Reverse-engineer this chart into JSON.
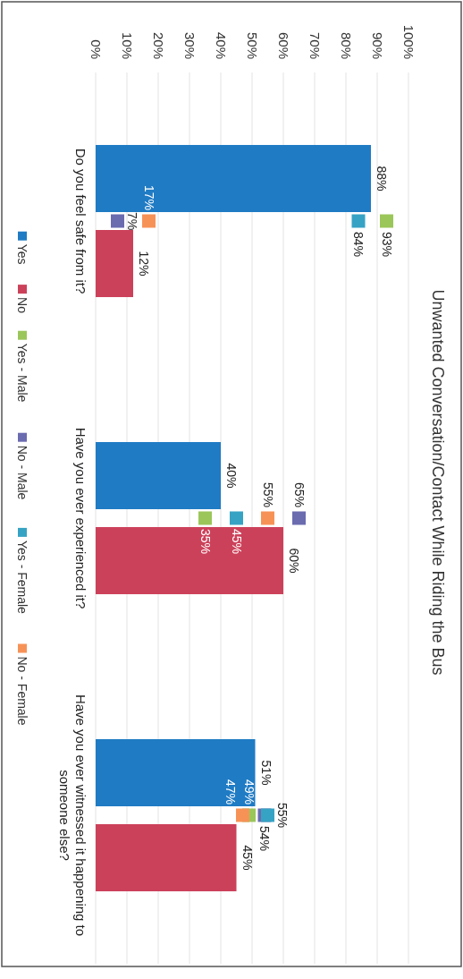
{
  "chart_data": {
    "type": "bar",
    "orientation": "horizontal",
    "title": "Unwanted Conversation/Contact While Riding the Bus",
    "categories": [
      "Do you feel safe from it?",
      "Have you ever experienced it?",
      "Have you ever witnessed it happening to someone else?"
    ],
    "series": [
      {
        "name": "Yes",
        "color": "#1f7bc4",
        "values": [
          88,
          40,
          51
        ],
        "value_labels": [
          "88%",
          "40%",
          "51%"
        ]
      },
      {
        "name": "No",
        "color": "#cc415a",
        "values": [
          12,
          60,
          45
        ],
        "value_labels": [
          "12%",
          "60%",
          "45%"
        ]
      },
      {
        "name": "Yes - Male",
        "type": "scatter",
        "color": "#9bc65a",
        "x": [
          "Do you feel safe from it?",
          "Have you ever experienced it?",
          "Have you ever witnessed it happening to someone else?"
        ],
        "values": [
          93,
          35,
          49
        ],
        "value_labels": [
          "93%",
          "35%",
          "49%"
        ]
      },
      {
        "name": "No - Male",
        "type": "scatter",
        "color": "#6b6bb0",
        "x": [
          "Do you feel safe from it?",
          "Have you ever experienced it?",
          "Have you ever witnessed it happening to someone else?"
        ],
        "values": [
          7,
          65,
          54
        ],
        "value_labels": [
          "7%",
          "65%",
          "54%"
        ]
      },
      {
        "name": "Yes - Female",
        "type": "scatter",
        "color": "#36a3c4",
        "x": [
          "Do you feel safe from it?",
          "Have you ever experienced it?",
          "Have you ever witnessed it happening to someone else?"
        ],
        "values": [
          84,
          45,
          55
        ],
        "value_labels": [
          "84%",
          "45%",
          "55%"
        ]
      },
      {
        "name": "No - Female",
        "type": "scatter",
        "color": "#f79257",
        "x": [
          "Do you feel safe from it?",
          "Have you ever experienced it?",
          "Have you ever witnessed it happening to someone else?"
        ],
        "values": [
          17,
          55,
          47
        ],
        "value_labels": [
          "17%",
          "55%",
          "47%"
        ]
      }
    ],
    "xlim": [
      0,
      100
    ],
    "xticks": [
      {
        "value": 0,
        "label": "0%"
      },
      {
        "value": 10,
        "label": "10%"
      },
      {
        "value": 20,
        "label": "20%"
      },
      {
        "value": 30,
        "label": "30%"
      },
      {
        "value": 40,
        "label": "40%"
      },
      {
        "value": 50,
        "label": "50%"
      },
      {
        "value": 60,
        "label": "60%"
      },
      {
        "value": 70,
        "label": "70%"
      },
      {
        "value": 80,
        "label": "80%"
      },
      {
        "value": 90,
        "label": "90%"
      },
      {
        "value": 100,
        "label": "100%"
      }
    ],
    "grid": "x",
    "legend": "left",
    "marker": "square"
  }
}
